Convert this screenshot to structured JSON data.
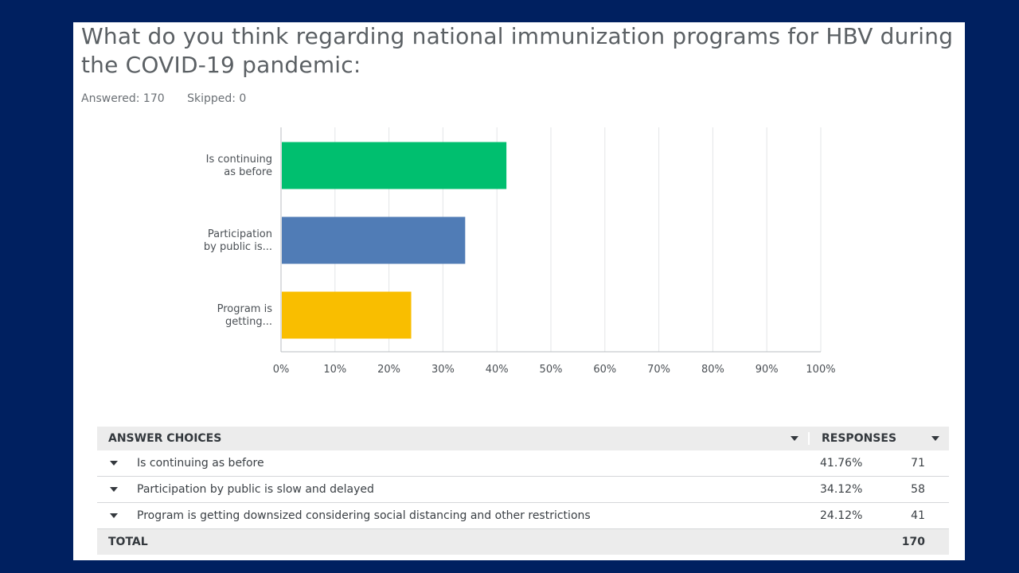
{
  "question": {
    "title": "What do you think regarding national immunization programs for HBV during the COVID-19 pandemic:",
    "answered": "Answered: 170",
    "skipped": "Skipped: 0"
  },
  "colors": {
    "background": "#002060",
    "green": "#00bf6f",
    "blue": "#507cb6",
    "yellow": "#f9be00"
  },
  "chart_data": {
    "type": "bar",
    "orientation": "horizontal",
    "categories": [
      [
        "Is continuing",
        "as before"
      ],
      [
        "Participation",
        "by public is..."
      ],
      [
        "Program is",
        "getting..."
      ]
    ],
    "values": [
      41.76,
      34.12,
      24.12
    ],
    "colors": [
      "#00bf6f",
      "#507cb6",
      "#f9be00"
    ],
    "xlim": [
      0,
      100
    ],
    "xticks": [
      "0%",
      "10%",
      "20%",
      "30%",
      "40%",
      "50%",
      "60%",
      "70%",
      "80%",
      "90%",
      "100%"
    ],
    "grid": true
  },
  "table": {
    "headers": {
      "choices": "ANSWER CHOICES",
      "responses": "RESPONSES"
    },
    "rows": [
      {
        "choice": "Is continuing as before",
        "percent": "41.76%",
        "count": "71"
      },
      {
        "choice": "Participation by public is slow and delayed",
        "percent": "34.12%",
        "count": "58"
      },
      {
        "choice": "Program is getting downsized considering social distancing and other restrictions",
        "percent": "24.12%",
        "count": "41"
      }
    ],
    "total": {
      "label": "TOTAL",
      "count": "170"
    }
  }
}
